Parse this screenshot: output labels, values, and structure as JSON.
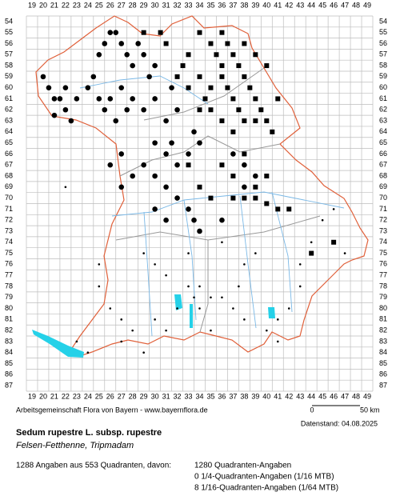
{
  "map": {
    "columns": [
      19,
      20,
      21,
      22,
      23,
      24,
      25,
      26,
      27,
      28,
      29,
      30,
      31,
      32,
      33,
      34,
      35,
      36,
      37,
      38,
      39,
      40,
      41,
      42,
      43,
      44,
      45,
      46,
      47,
      48,
      49
    ],
    "rows": [
      54,
      55,
      56,
      57,
      58,
      59,
      60,
      61,
      62,
      63,
      64,
      65,
      66,
      67,
      68,
      69,
      70,
      71,
      72,
      73,
      74,
      75,
      76,
      77,
      78,
      79,
      80,
      81,
      82,
      83,
      84,
      85,
      86,
      87
    ],
    "dots": {
      "circles": [
        [
          20,
          59
        ],
        [
          20.5,
          60
        ],
        [
          21,
          61
        ],
        [
          21.5,
          61
        ],
        [
          22,
          60
        ],
        [
          22,
          62
        ],
        [
          21,
          62.5
        ],
        [
          22.5,
          63
        ],
        [
          23,
          61
        ],
        [
          24,
          60
        ],
        [
          24.5,
          59
        ],
        [
          25,
          57
        ],
        [
          25.5,
          56
        ],
        [
          26,
          55
        ],
        [
          26.5,
          55
        ],
        [
          27,
          56
        ],
        [
          27.5,
          57
        ],
        [
          28,
          58
        ],
        [
          28.5,
          56
        ],
        [
          29,
          57
        ],
        [
          29.5,
          59
        ],
        [
          30,
          58
        ],
        [
          25,
          61
        ],
        [
          25.5,
          62
        ],
        [
          26,
          61
        ],
        [
          26.5,
          63
        ],
        [
          27,
          60
        ],
        [
          27.5,
          62
        ],
        [
          28,
          61
        ],
        [
          29,
          62
        ],
        [
          30,
          61
        ],
        [
          31,
          63
        ],
        [
          31.5,
          60
        ],
        [
          32,
          62
        ],
        [
          30,
          65
        ],
        [
          31,
          66
        ],
        [
          31.5,
          65
        ],
        [
          32,
          67
        ],
        [
          33,
          66
        ],
        [
          33.5,
          64
        ],
        [
          34,
          65
        ],
        [
          29,
          67
        ],
        [
          30,
          68
        ],
        [
          31,
          69
        ],
        [
          32,
          70
        ],
        [
          33,
          71
        ],
        [
          33.5,
          72
        ],
        [
          30,
          71
        ],
        [
          31,
          72
        ],
        [
          34,
          73
        ],
        [
          27,
          66
        ],
        [
          28,
          68
        ],
        [
          26,
          67
        ],
        [
          27,
          69
        ],
        [
          38,
          67
        ],
        [
          39,
          68
        ],
        [
          38,
          69
        ],
        [
          37,
          66
        ],
        [
          36,
          72
        ]
      ],
      "squares": [
        [
          34,
          55
        ],
        [
          35,
          56
        ],
        [
          35.5,
          57
        ],
        [
          36,
          55
        ],
        [
          36.5,
          56
        ],
        [
          37,
          57
        ],
        [
          37.5,
          58
        ],
        [
          38,
          59
        ],
        [
          38.5,
          60
        ],
        [
          39,
          61
        ],
        [
          36,
          59
        ],
        [
          36.5,
          60
        ],
        [
          37,
          61
        ],
        [
          37.5,
          62
        ],
        [
          38,
          63
        ],
        [
          39,
          63
        ],
        [
          40,
          63
        ],
        [
          40.5,
          64
        ],
        [
          39.5,
          62
        ],
        [
          41,
          61
        ],
        [
          35,
          60
        ],
        [
          34.5,
          61
        ],
        [
          35,
          62
        ],
        [
          36,
          63
        ],
        [
          37,
          64
        ],
        [
          33,
          57
        ],
        [
          32.5,
          58
        ],
        [
          34,
          59
        ],
        [
          33,
          60
        ],
        [
          32,
          59
        ],
        [
          31,
          56
        ],
        [
          30.5,
          55
        ],
        [
          29,
          55
        ],
        [
          34,
          62
        ],
        [
          36,
          58
        ],
        [
          38,
          56
        ],
        [
          39,
          57
        ],
        [
          40,
          58
        ],
        [
          39,
          70
        ],
        [
          40,
          70.5
        ],
        [
          41,
          71
        ],
        [
          39,
          69
        ],
        [
          38,
          70
        ],
        [
          37,
          68
        ],
        [
          36,
          67
        ],
        [
          38,
          66
        ],
        [
          40,
          68
        ],
        [
          42,
          71
        ],
        [
          37,
          70
        ],
        [
          35,
          70
        ],
        [
          34,
          69
        ],
        [
          33,
          67
        ],
        [
          44,
          75
        ],
        [
          46,
          74
        ]
      ],
      "small": [
        [
          22,
          69
        ],
        [
          25,
          76
        ],
        [
          25,
          78
        ],
        [
          26,
          80
        ],
        [
          27,
          81
        ],
        [
          27,
          83
        ],
        [
          28,
          82
        ],
        [
          29,
          84
        ],
        [
          30,
          81
        ],
        [
          31,
          82
        ],
        [
          32,
          80
        ],
        [
          33,
          78
        ],
        [
          33.5,
          79
        ],
        [
          34,
          78
        ],
        [
          34,
          80
        ],
        [
          35,
          79
        ],
        [
          35,
          82
        ],
        [
          36,
          79
        ],
        [
          37,
          80
        ],
        [
          37.5,
          78
        ],
        [
          38,
          81
        ],
        [
          38,
          76
        ],
        [
          40,
          82
        ],
        [
          41,
          81
        ],
        [
          41,
          83
        ],
        [
          42,
          80
        ],
        [
          43,
          76
        ],
        [
          43,
          78
        ],
        [
          44,
          74
        ],
        [
          45,
          72
        ],
        [
          46,
          71
        ],
        [
          47,
          75
        ],
        [
          29,
          75
        ],
        [
          30,
          76
        ],
        [
          31,
          77
        ],
        [
          33,
          75
        ],
        [
          23,
          83
        ],
        [
          24,
          84
        ],
        [
          36,
          74
        ],
        [
          39,
          75
        ]
      ]
    }
  },
  "footer": {
    "credit": "Arbeitsgemeinschaft Flora von Bayern - www.bayernflora.de",
    "scale_start": "0",
    "scale_end": "50 km",
    "date": "Datenstand: 04.08.2025",
    "title": "Sedum rupestre L. subsp. rupestre",
    "subtitle": "Felsen-Fetthenne, Tripmadam",
    "summary": "1288 Angaben aus 553 Quadranten, davon:",
    "details": [
      "1280 Quadranten-Angaben",
      "0 1/4-Quadranten-Angaben (1/16 MTB)",
      "8 1/16-Quadranten-Angaben (1/64 MTB)"
    ]
  }
}
